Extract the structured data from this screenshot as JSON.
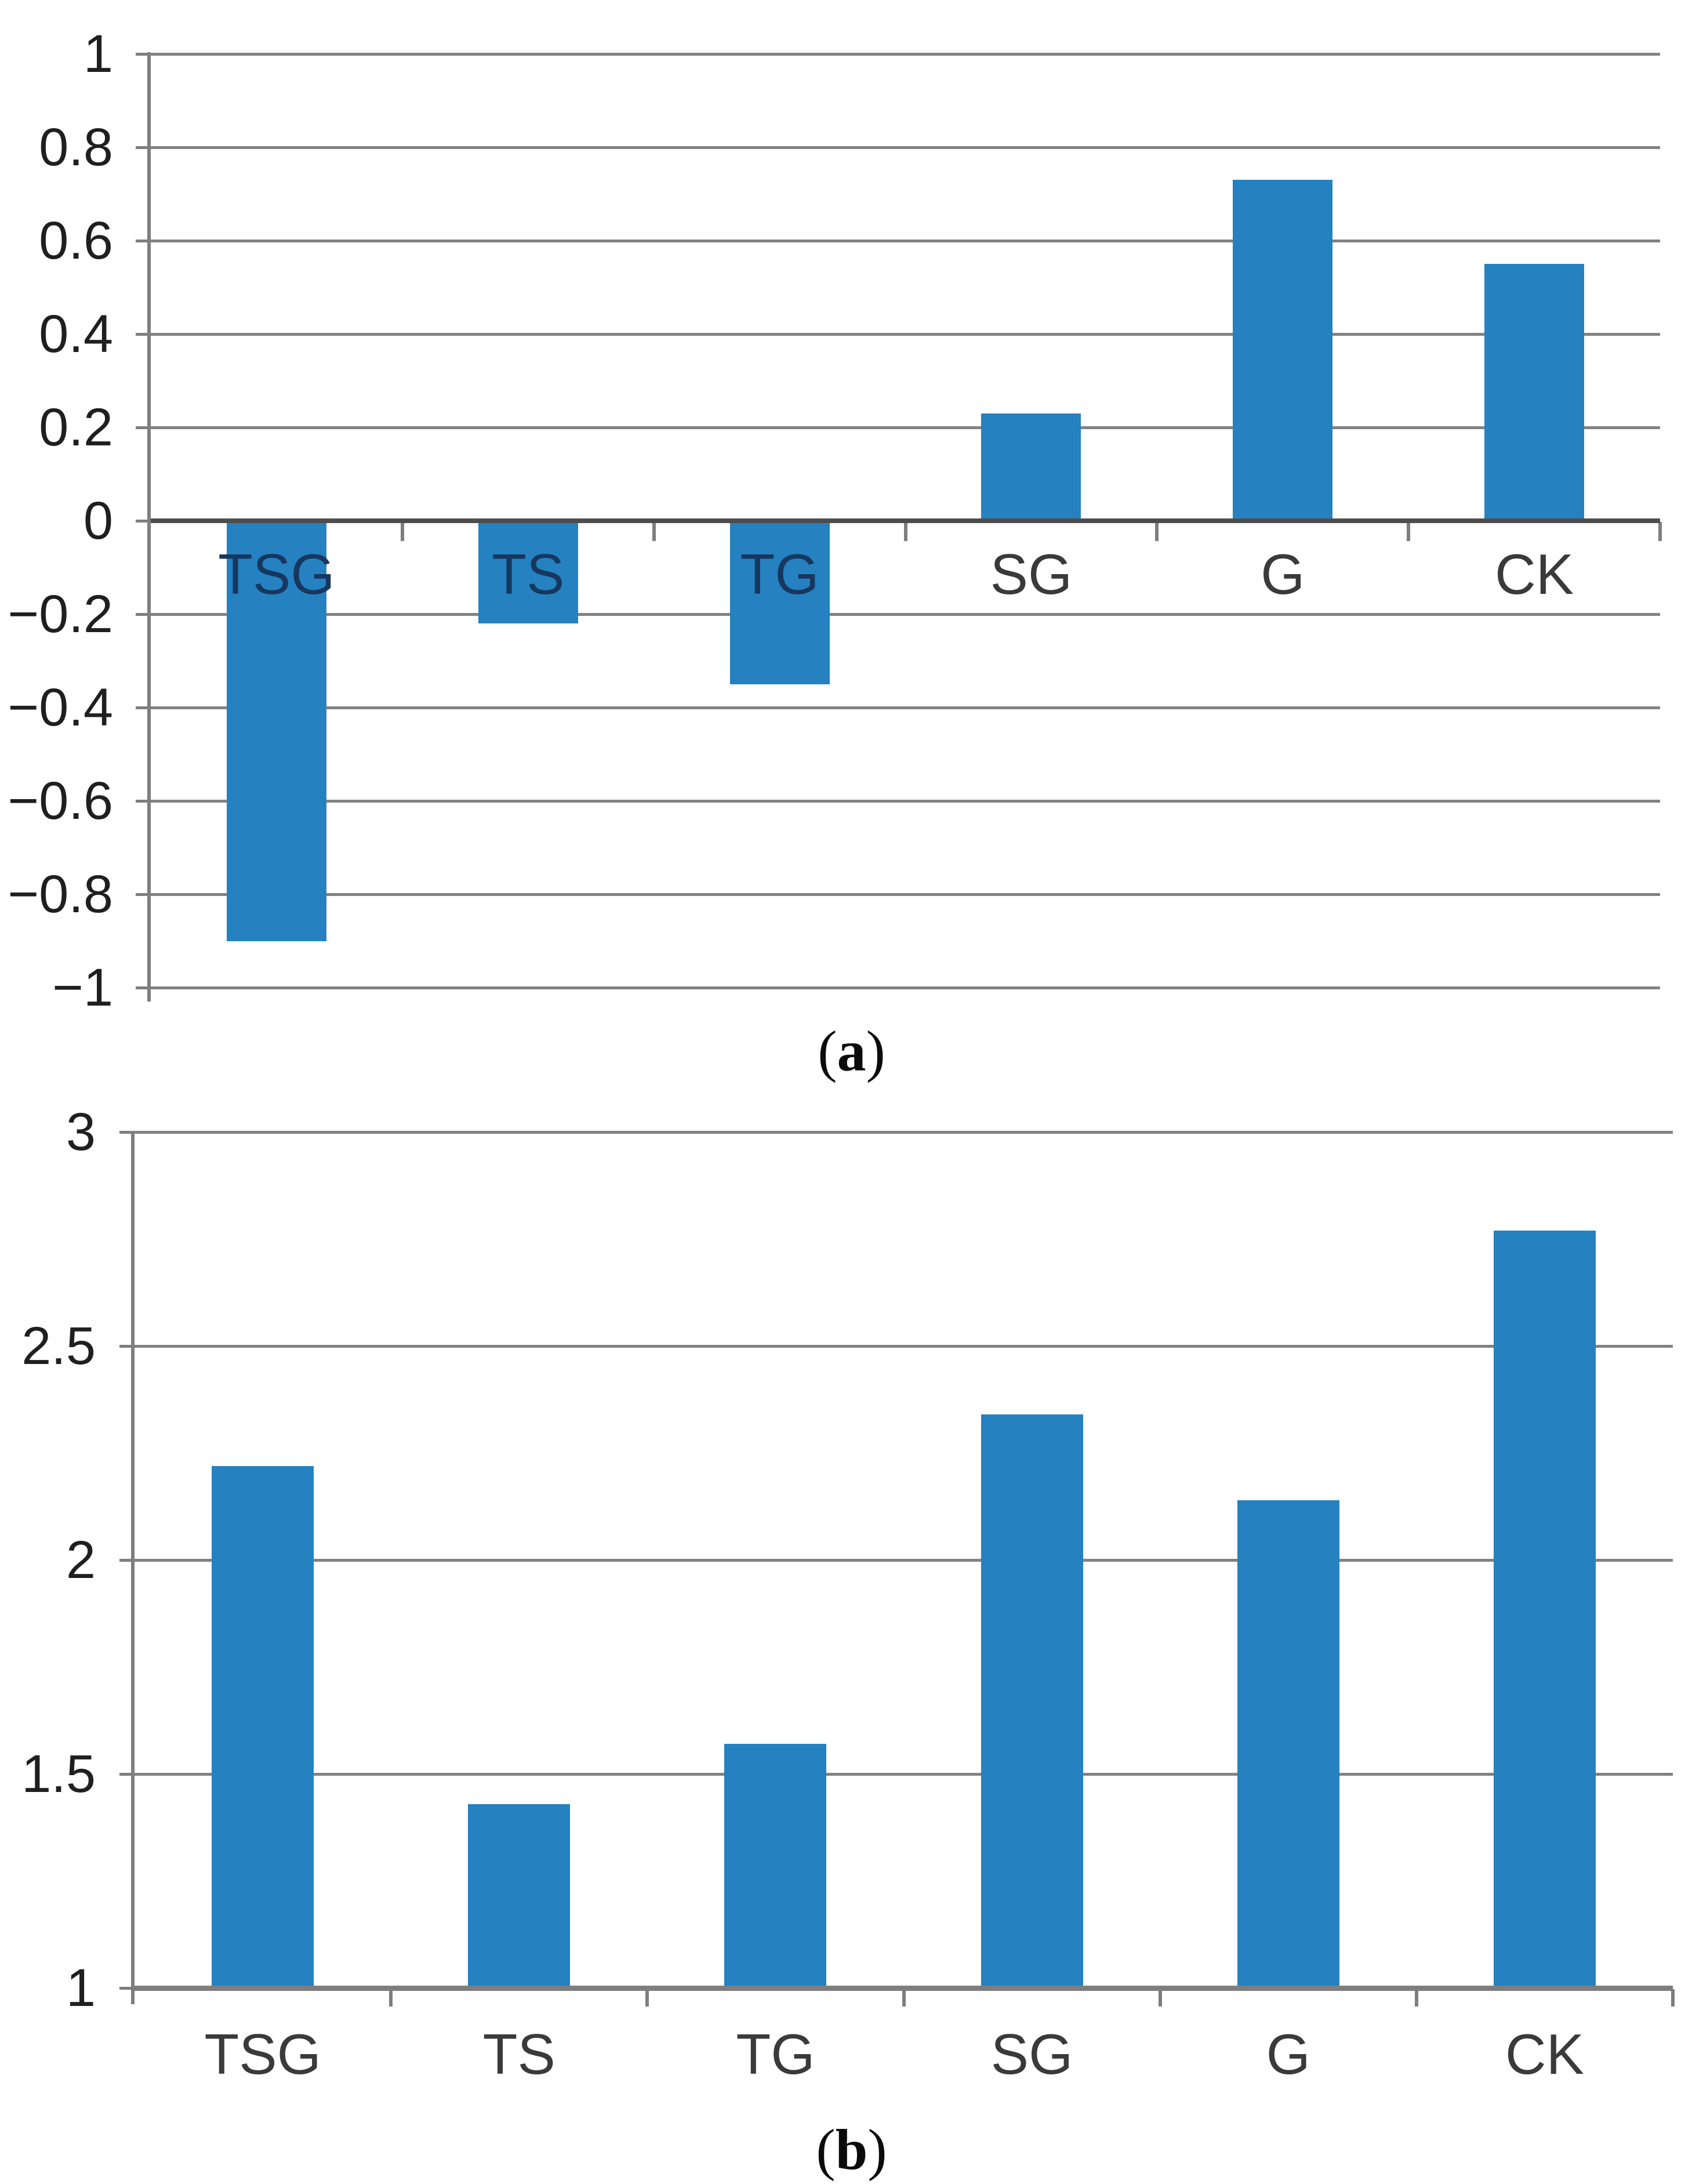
{
  "figure": {
    "captions": {
      "a": {
        "open": "(",
        "letter": "a",
        "close": ")"
      },
      "b": {
        "open": "(",
        "letter": "b",
        "close": ")"
      }
    }
  },
  "colors": {
    "background": "#FFFFFF",
    "bar": "#2581C0",
    "gridline": "#828282",
    "axis_line": "#7E7E7E",
    "zero_line": "#4D4D4D",
    "tick_label": "#1F1F1F",
    "category_label_on_bar": "#17375E",
    "category_label": "#3A3A3A"
  },
  "chart_data": [
    {
      "id": "a",
      "type": "bar",
      "panel_label": "(a)",
      "title": "",
      "xlabel": "",
      "ylabel": "",
      "categories": [
        "TSG",
        "TS",
        "TG",
        "SG",
        "G",
        "CK"
      ],
      "values": [
        -0.9,
        -0.22,
        -0.35,
        0.23,
        0.73,
        0.55
      ],
      "ylim": [
        -1,
        1
      ],
      "ytick_values": [
        1,
        0.8,
        0.6,
        0.4,
        0.2,
        0,
        -0.2,
        -0.4,
        -0.6,
        -0.8,
        -1
      ],
      "ytick_labels": [
        "1",
        "0.8",
        "0.6",
        "0.4",
        "0.2",
        "0",
        "−0.2",
        "−0.4",
        "−0.6",
        "−0.8",
        "−1"
      ],
      "grid": true,
      "legend": "none",
      "category_label_position": "below-zero-axis-inside-plot"
    },
    {
      "id": "b",
      "type": "bar",
      "panel_label": "(b)",
      "title": "",
      "xlabel": "",
      "ylabel": "",
      "categories": [
        "TSG",
        "TS",
        "TG",
        "SG",
        "G",
        "CK"
      ],
      "values": [
        2.22,
        1.43,
        1.57,
        2.34,
        2.14,
        2.77
      ],
      "ylim": [
        1,
        3
      ],
      "ytick_values": [
        3,
        2.5,
        2,
        1.5,
        1
      ],
      "ytick_labels": [
        "3",
        "2.5",
        "2",
        "1.5",
        "1"
      ],
      "grid": true,
      "legend": "none",
      "category_label_position": "below-axis"
    }
  ]
}
